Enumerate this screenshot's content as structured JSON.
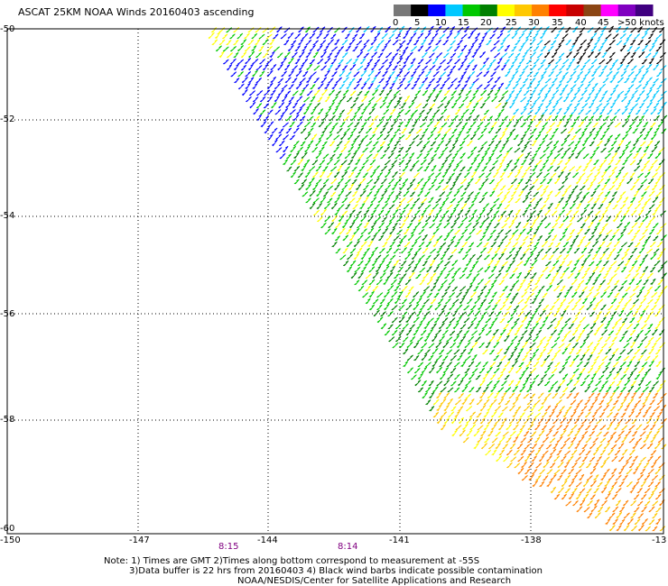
{
  "title": "ASCAT 25KM NOAA Winds 20160403 ascending",
  "colorbar": {
    "colors": [
      "#787878",
      "#000000",
      "#0000ff",
      "#00c8ff",
      "#00c800",
      "#008000",
      "#ffff00",
      "#ffc800",
      "#ff8000",
      "#ff0000",
      "#c80000",
      "#8b4513",
      "#ff00ff",
      "#8000c0",
      "#400080"
    ],
    "ticks": [
      "0",
      "5",
      "10",
      "15",
      "20",
      "25",
      "30",
      "35",
      "40",
      "45"
    ],
    "max_label": ">50 knots"
  },
  "axes": {
    "lat_ticks": [
      "-50",
      "-52",
      "-54",
      "-56",
      "-58",
      "-60"
    ],
    "lon_ticks": [
      "-150",
      "-147",
      "-144",
      "-141",
      "-138",
      "-13"
    ]
  },
  "pass_times": [
    "8:15",
    "8:14"
  ],
  "notes": [
    "Note: 1) Times are GMT 2)Times along bottom correspond to measurement at -55S",
    "3)Data buffer is 22 hrs from 20160403 4) Black wind barbs indicate possible contamination",
    "NOAA/NESDIS/Center for Satellite Applications and Research"
  ]
}
